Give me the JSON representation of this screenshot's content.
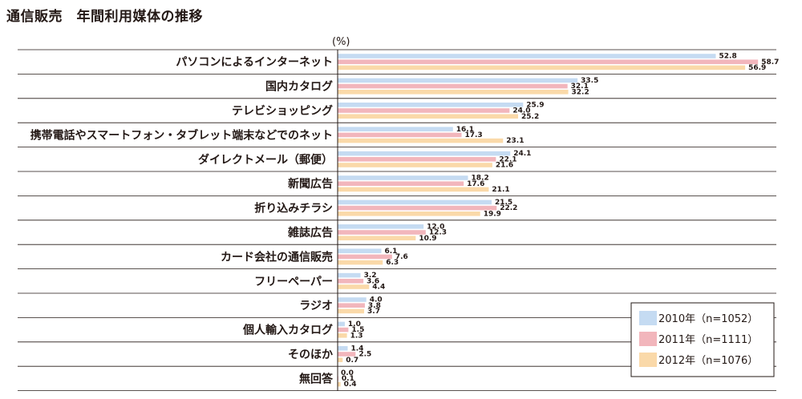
{
  "chart_data": {
    "type": "bar",
    "orientation": "horizontal",
    "title": "通信販売　年間利用媒体の推移",
    "unit_label": "(%)",
    "xlim": [
      0,
      60
    ],
    "categories": [
      "パソコンによるインターネット",
      "国内カタログ",
      "テレビショッピング",
      "携帯電話やスマートフォン・タブレット端末などでのネット",
      "ダイレクトメール（郵便）",
      "新聞広告",
      "折り込みチラシ",
      "雑誌広告",
      "カード会社の通信販売",
      "フリーペーパー",
      "ラジオ",
      "個人輸入カタログ",
      "そのほか",
      "無回答"
    ],
    "series": [
      {
        "name": "2010年（n=1052）",
        "color": "#c5dbf2",
        "values": [
          52.8,
          33.5,
          25.9,
          16.1,
          24.1,
          18.2,
          21.5,
          12.0,
          6.1,
          3.2,
          4.0,
          1.0,
          1.4,
          0.0
        ]
      },
      {
        "name": "2011年（n=1111）",
        "color": "#f2b6bc",
        "values": [
          58.7,
          32.1,
          24.0,
          17.3,
          22.1,
          17.6,
          22.2,
          12.3,
          7.6,
          3.6,
          3.8,
          1.5,
          2.5,
          0.1
        ]
      },
      {
        "name": "2012年（n=1076）",
        "color": "#fad9a9",
        "values": [
          56.9,
          32.2,
          25.2,
          23.1,
          21.6,
          21.1,
          19.9,
          10.9,
          6.3,
          4.4,
          3.7,
          1.3,
          0.7,
          0.4
        ]
      }
    ],
    "legend_position": "bottom-right",
    "grid": false
  }
}
